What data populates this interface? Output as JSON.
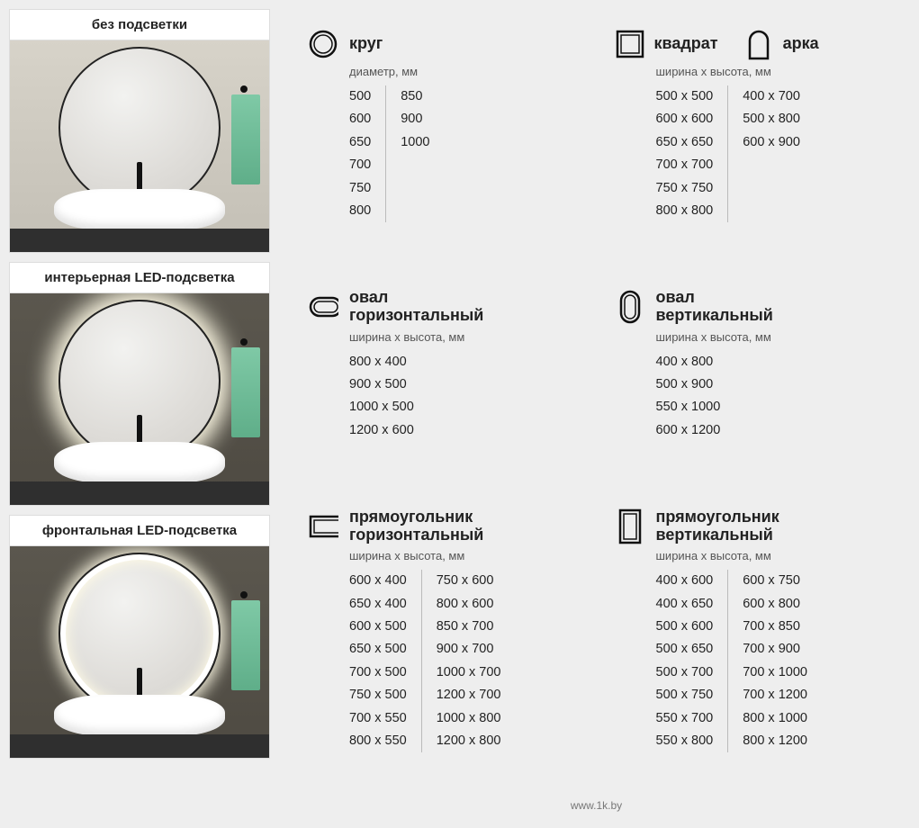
{
  "left": {
    "cards": [
      {
        "title": "без подсветки",
        "variant": "none"
      },
      {
        "title": "интерьерная LED-подсветка",
        "variant": "back"
      },
      {
        "title": "фронтальная LED-подсветка",
        "variant": "front"
      }
    ]
  },
  "shapes": {
    "circle": {
      "title": "круг",
      "sub": "диаметр, мм",
      "cols": [
        [
          "500",
          "600",
          "650",
          "700",
          "750",
          "800"
        ],
        [
          "850",
          "900",
          "1000"
        ]
      ]
    },
    "square_arch": {
      "pair": [
        {
          "title": "квадрат",
          "icon": "square"
        },
        {
          "title": "арка",
          "icon": "arch"
        }
      ],
      "sub": "ширина х высота, мм",
      "cols": [
        [
          "500 x 500",
          "600 x 600",
          "650 x 650",
          "700 x 700",
          "750 x 750",
          "800 x 800"
        ],
        [
          "400 x 700",
          "500 x 800",
          "600 x 900"
        ]
      ]
    },
    "oval_h": {
      "title": "овал\nгоризонтальный",
      "sub": "ширина х высота, мм",
      "cols": [
        [
          "800 x 400",
          "900 x 500",
          "1000 x 500",
          "1200 x 600"
        ]
      ]
    },
    "oval_v": {
      "title": "овал\nвертикальный",
      "sub": "ширина х высота, мм",
      "cols": [
        [
          "400 x 800",
          "500 x 900",
          "550 x 1000",
          "600 x 1200"
        ]
      ]
    },
    "rect_h": {
      "title": "прямоугольник\nгоризонтальный",
      "sub": "ширина х высота, мм",
      "cols": [
        [
          "600 x 400",
          "650 x 400",
          "600 x 500",
          "650 x 500",
          "700 x 500",
          "750 x 500",
          "700 x 550",
          "800 x 550"
        ],
        [
          "750 x 600",
          "800 x 600",
          "850 x 700",
          "900 x 700",
          "1000 x 700",
          "1200 x 700",
          "1000 x 800",
          "1200 x 800"
        ]
      ]
    },
    "rect_v": {
      "title": "прямоугольник\nвертикальный",
      "sub": "ширина х высота, мм",
      "cols": [
        [
          "400 x 600",
          "400 x 650",
          "500 x 600",
          "500 x 650",
          "500 x 700",
          "500 x 750",
          "550 x 700",
          "550 x 800"
        ],
        [
          "600 x 750",
          "600 x 800",
          "700 x 850",
          "700 x 900",
          "700 x 1000",
          "700 x 1200",
          "800 x 1000",
          "800 x 1200"
        ]
      ]
    }
  },
  "footer": "www.1k.by",
  "colors": {
    "page_bg": "#eeeeee",
    "text": "#222222",
    "sub_text": "#555555",
    "divider": "#bbbbbb",
    "card_border": "#dddddd",
    "mirror_border": "#222222",
    "glow": "#fffbe6",
    "towel": "#7fc9a6",
    "counter": "#2f2f2f"
  }
}
